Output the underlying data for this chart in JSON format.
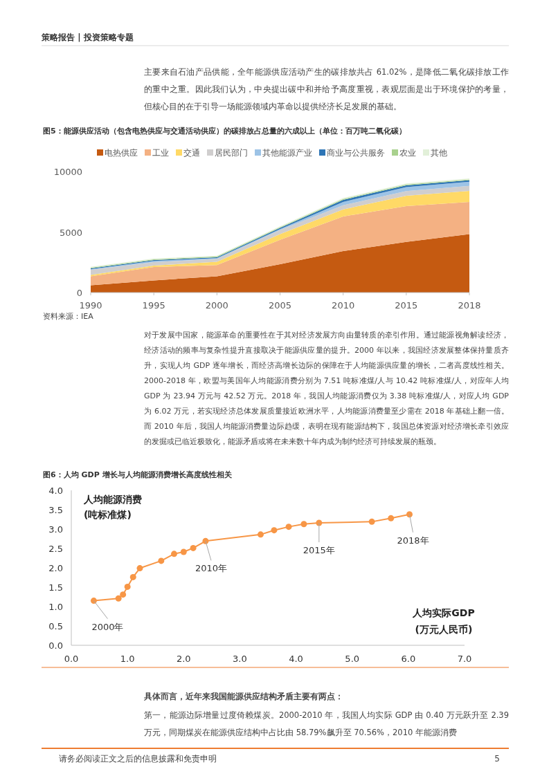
{
  "chart_data": [
    {
      "type": "area",
      "stacked": true,
      "title": "图5：能源供应活动（包含电热供应与交通活动供应）的碳排放占总量的六成以上（单位：百万吨二氧化碳）",
      "categories": [
        "1990",
        "1995",
        "2000",
        "2005",
        "2010",
        "2015",
        "2018"
      ],
      "series": [
        {
          "name": "电热供应",
          "color": "#c55a11",
          "values": [
            600,
            1000,
            1350,
            2350,
            3430,
            4180,
            4830
          ]
        },
        {
          "name": "工业",
          "color": "#f4b183",
          "values": [
            750,
            1110,
            920,
            2010,
            2860,
            2970,
            2660
          ]
        },
        {
          "name": "交通",
          "color": "#ffd966",
          "values": [
            110,
            120,
            280,
            470,
            580,
            850,
            910
          ]
        },
        {
          "name": "居民部门",
          "color": "#d0cece",
          "values": [
            420,
            280,
            230,
            340,
            350,
            380,
            420
          ]
        },
        {
          "name": "其他能源产业",
          "color": "#9dc3e6",
          "values": [
            50,
            110,
            70,
            70,
            270,
            340,
            340
          ]
        },
        {
          "name": "商业与公共服务",
          "color": "#2e75b6",
          "values": [
            70,
            70,
            70,
            100,
            170,
            140,
            120
          ]
        },
        {
          "name": "农业",
          "color": "#a9d18e",
          "values": [
            60,
            60,
            60,
            60,
            70,
            70,
            70
          ]
        },
        {
          "name": "其他",
          "color": "#e2f0d9",
          "values": [
            70,
            70,
            70,
            70,
            80,
            80,
            80
          ]
        }
      ],
      "ylim": [
        0,
        10000
      ],
      "yticks": [
        0,
        5000,
        10000
      ],
      "grid": false,
      "legend": "top",
      "annotations": [
        "策略报告 | 投资策略专题",
        "主要来自石油产品供能，全年能源供应活动产生的碳排放共占 61.02%，是降低二氧化碳排放工作的重中之重。因此我们认为，中央提出碳中和并给予高度重视，表观层面是出于环境保护的考量，但核心目的在于引导一场能源领域内革命以提供经济长足发展的基础。",
        "资料来源：IEA",
        "对于发展中国家，能源革命的重要性在于其对经济发展方向由量转质的牵引作用。通过能源视角解读经济，经济活动的频率与复杂性提升直接取决于能源供应量的提升。2000 年以来，我国经济发展整体保持量质齐升，实现人均 GDP 逐年增长，而经济高增长边际的保障在于人均能源供应量的增长，二者高度线性相关。2000-2018 年，欧盟与美国年人均能源消费分别为 7.51 吨标准煤/人与 10.42 吨标准煤/人，对应年人均 GDP 为 23.94 万元与 42.52 万元。2018 年，我国人均能源消费仅为 3.38 吨标准煤/人，对应人均 GDP 为 6.02 万元，若实现经济总体发展质量接近欧洲水平，人均能源消费量至少需在 2018 年基础上翻一倍。而 2010 年后，我国人均能源消费量边际趋缓，表明在现有能源结构下，我国总体资源对经济增长牵引效应的发掘或已临近极致化，能源矛盾或将在未来数十年内成为制约经济可持续发展的瓶颈。"
      ]
    },
    {
      "type": "line",
      "title": "图6：人均 GDP 增长与人均能源消费增长高度线性相关",
      "xlabel": "人均实际GDP\n(万元人民币)",
      "ylabel": "人均能源消费\n(吨标准煤)",
      "x": [
        0.4,
        0.84,
        0.92,
        1.0,
        1.1,
        1.22,
        1.6,
        1.83,
        2.0,
        2.17,
        2.39,
        3.37,
        3.61,
        3.87,
        4.14,
        4.41,
        5.35,
        5.69,
        6.02
      ],
      "series": [
        {
          "color": "#f79646",
          "values": [
            1.15,
            1.21,
            1.31,
            1.51,
            1.76,
            1.99,
            2.18,
            2.36,
            2.41,
            2.51,
            2.69,
            2.86,
            2.97,
            3.06,
            3.13,
            3.16,
            3.19,
            3.28,
            3.38
          ]
        }
      ],
      "marker": "circle",
      "line_style": "solid",
      "grid": false,
      "xlim": [
        0,
        7
      ],
      "xticks": [
        {
          "value": 0,
          "label": "0.0"
        },
        {
          "value": 1,
          "label": "1.0"
        },
        {
          "value": 2,
          "label": "2.0"
        },
        {
          "value": 3,
          "label": "3.0"
        },
        {
          "value": 4,
          "label": "4.0"
        },
        {
          "value": 5,
          "label": "5.0"
        },
        {
          "value": 6,
          "label": "6.0"
        },
        {
          "value": 7,
          "label": "7.0"
        }
      ],
      "ylim": [
        0,
        4
      ],
      "yticks": [
        {
          "value": 0,
          "label": "0.0"
        },
        {
          "value": 0.5,
          "label": "0.5"
        },
        {
          "value": 1,
          "label": "1.0"
        },
        {
          "value": 1.5,
          "label": "1.5"
        },
        {
          "value": 2,
          "label": "2.0"
        },
        {
          "value": 2.5,
          "label": "2.5"
        },
        {
          "value": 3,
          "label": "3.0"
        },
        {
          "value": 3.5,
          "label": "3.5"
        },
        {
          "value": 4,
          "label": "4.0"
        }
      ],
      "annotations": [
        {
          "text": "2000年",
          "x": 0.4,
          "y": 1.15
        },
        {
          "text": "2010年",
          "x": 2.39,
          "y": 2.69
        },
        {
          "text": "2015年",
          "x": 4.41,
          "y": 3.16
        },
        {
          "text": "2018年",
          "x": 6.02,
          "y": 3.38
        },
        "具体而言，近年来我国能源供应结构矛盾主要有两点：",
        "第一，能源边际增量过度倚赖煤炭。2000-2010 年，我国人均实际 GDP 由 0.40 万元跃升至 2.39 万元，同期煤炭在能源供应结构中占比由 58.79%飙升至 70.56%，2010 年能源消费",
        "请务必阅读正文之后的信息披露和免责申明",
        "5"
      ]
    }
  ]
}
